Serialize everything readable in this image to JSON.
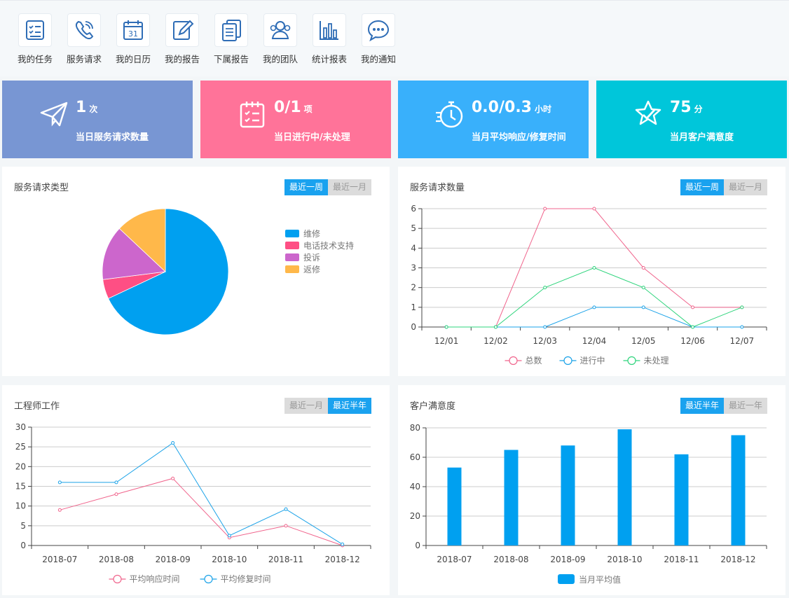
{
  "toolbar": {
    "items": [
      {
        "label": "我的任务",
        "icon": "task-list-icon"
      },
      {
        "label": "服务请求",
        "icon": "phone-icon"
      },
      {
        "label": "我的日历",
        "icon": "calendar-icon"
      },
      {
        "label": "我的报告",
        "icon": "edit-report-icon"
      },
      {
        "label": "下属报告",
        "icon": "documents-icon"
      },
      {
        "label": "我的团队",
        "icon": "team-icon"
      },
      {
        "label": "统计报表",
        "icon": "bar-chart-icon"
      },
      {
        "label": "我的通知",
        "icon": "chat-icon"
      }
    ],
    "calendar_day": "31"
  },
  "kpis": [
    {
      "value": "1",
      "unit": "次",
      "caption": "当日服务请求数量",
      "color": "#7896d3",
      "icon": "paper-plane-icon"
    },
    {
      "value": "0/1",
      "unit": "项",
      "caption": "当日进行中/未处理",
      "color": "#ff7399",
      "icon": "checklist-icon"
    },
    {
      "value": "0.0/0.3",
      "unit": "小时",
      "caption": "当月平均响应/修复时间",
      "color": "#39b0fb",
      "icon": "stopwatch-icon"
    },
    {
      "value": "75",
      "unit": "分",
      "caption": "当月客户满意度",
      "color": "#00c6da",
      "icon": "star-check-icon"
    }
  ],
  "panels": {
    "service_type": {
      "title": "服务请求类型",
      "tabs": [
        "最近一周",
        "最近一月"
      ],
      "active_tab": 0
    },
    "service_count": {
      "title": "服务请求数量",
      "tabs": [
        "最近一周",
        "最近一月"
      ],
      "active_tab": 0
    },
    "engineer": {
      "title": "工程师工作",
      "tabs": [
        "最近一月",
        "最近半年"
      ],
      "active_tab": 1
    },
    "satisfaction": {
      "title": "客户满意度",
      "tabs": [
        "最近半年",
        "最近一年"
      ],
      "active_tab": 0
    }
  },
  "chart_data": [
    {
      "type": "pie",
      "categories": [
        "维修",
        "电话技术支持",
        "投诉",
        "返修"
      ],
      "values": [
        68,
        5,
        14,
        13
      ],
      "colors": [
        "#00a0f0",
        "#fe4f84",
        "#cc66cc",
        "#ffb84a"
      ],
      "legend": "right"
    },
    {
      "type": "line",
      "categories": [
        "12/01",
        "12/02",
        "12/03",
        "12/04",
        "12/05",
        "12/06",
        "12/07"
      ],
      "series": [
        {
          "name": "总数",
          "values": [
            0,
            0,
            6,
            6,
            3,
            1,
            1
          ],
          "color": "#f0648c"
        },
        {
          "name": "进行中",
          "values": [
            0,
            0,
            0,
            1,
            1,
            0,
            0
          ],
          "color": "#1aa2e8"
        },
        {
          "name": "未处理",
          "values": [
            0,
            0,
            2,
            3,
            2,
            0,
            1
          ],
          "color": "#2ed47c"
        }
      ],
      "ylim": [
        0,
        6
      ],
      "yticks": [
        0,
        1,
        2,
        3,
        4,
        5,
        6
      ],
      "legend": "bottom",
      "grid": true
    },
    {
      "type": "line",
      "categories": [
        "2018-07",
        "2018-08",
        "2018-09",
        "2018-10",
        "2018-11",
        "2018-12"
      ],
      "series": [
        {
          "name": "平均响应时间",
          "values": [
            9,
            13,
            17,
            2,
            5,
            0
          ],
          "color": "#f0648c"
        },
        {
          "name": "平均修复时间",
          "values": [
            16,
            16,
            26,
            2.5,
            9.2,
            0.3
          ],
          "color": "#1aa2e8"
        }
      ],
      "ylim": [
        0,
        30
      ],
      "yticks": [
        0,
        5,
        10,
        15,
        20,
        25,
        30
      ],
      "legend": "bottom",
      "grid": true
    },
    {
      "type": "bar",
      "categories": [
        "2018-07",
        "2018-08",
        "2018-09",
        "2018-10",
        "2018-11",
        "2018-12"
      ],
      "series": [
        {
          "name": "当月平均值",
          "values": [
            53,
            65,
            68,
            79,
            62,
            75
          ],
          "color": "#00a0f0"
        }
      ],
      "ylim": [
        0,
        80
      ],
      "yticks": [
        0,
        20,
        40,
        60,
        80
      ],
      "legend": "bottom",
      "grid": true
    }
  ]
}
